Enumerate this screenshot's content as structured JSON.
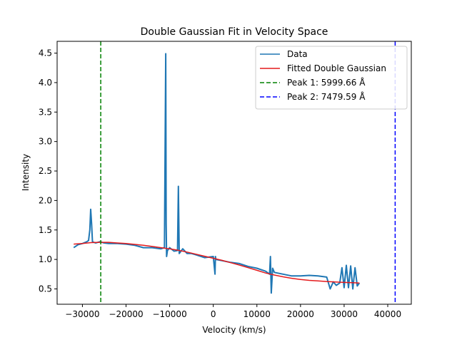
{
  "chart_data": {
    "type": "line",
    "title": "Double Gaussian Fit in Velocity Space",
    "xlabel": "Velocity (km/s)",
    "ylabel": "Intensity",
    "xlim": [
      -35800,
      45400
    ],
    "ylim": [
      0.24,
      4.7
    ],
    "xticks": [
      -30000,
      -20000,
      -10000,
      0,
      10000,
      20000,
      30000,
      40000
    ],
    "xtick_labels": [
      "−30000",
      "−20000",
      "−10000",
      "0",
      "10000",
      "20000",
      "30000",
      "40000"
    ],
    "yticks": [
      0.5,
      1.0,
      1.5,
      2.0,
      2.5,
      3.0,
      3.5,
      4.0,
      4.5
    ],
    "ytick_labels": [
      "0.5",
      "1.0",
      "1.5",
      "2.0",
      "2.5",
      "3.0",
      "3.5",
      "4.0",
      "4.5"
    ],
    "grid": false,
    "legend_position": "top-right",
    "series": [
      {
        "name": "Data",
        "color": "#1f77b4",
        "x": [
          -32000,
          -31000,
          -30000,
          -29000,
          -28600,
          -28300,
          -28100,
          -27900,
          -27700,
          -27000,
          -26000,
          -25000,
          -24000,
          -22000,
          -20000,
          -18000,
          -16000,
          -14000,
          -12000,
          -11200,
          -10900,
          -10800,
          -10700,
          -10500,
          -10000,
          -9000,
          -8200,
          -8000,
          -7800,
          -7000,
          -6000,
          -5000,
          -4000,
          -2000,
          0,
          400,
          500,
          600,
          2000,
          4000,
          6000,
          8000,
          10000,
          12000,
          12900,
          13100,
          13300,
          13600,
          14000,
          16000,
          18000,
          20000,
          22000,
          24000,
          26000,
          26800,
          27500,
          28200,
          29000,
          29500,
          30000,
          30500,
          31000,
          31500,
          32000,
          32500,
          33000,
          33500
        ],
        "y": [
          1.2,
          1.25,
          1.27,
          1.3,
          1.32,
          1.5,
          1.85,
          1.6,
          1.3,
          1.28,
          1.3,
          1.28,
          1.27,
          1.27,
          1.26,
          1.24,
          1.2,
          1.2,
          1.18,
          1.2,
          4.49,
          1.6,
          1.05,
          1.15,
          1.2,
          1.14,
          1.15,
          2.24,
          1.1,
          1.18,
          1.1,
          1.1,
          1.08,
          1.03,
          1.05,
          0.75,
          1.05,
          1.0,
          0.98,
          0.95,
          0.93,
          0.88,
          0.85,
          0.8,
          0.75,
          1.05,
          0.43,
          0.85,
          0.78,
          0.75,
          0.72,
          0.72,
          0.73,
          0.72,
          0.7,
          0.5,
          0.62,
          0.56,
          0.6,
          0.86,
          0.52,
          0.9,
          0.52,
          0.89,
          0.5,
          0.86,
          0.55,
          0.6
        ]
      },
      {
        "name": "Fitted Double Gaussian",
        "color": "#e41a1c",
        "x": [
          -32000,
          -30000,
          -28000,
          -26000,
          -24000,
          -22000,
          -20000,
          -18000,
          -16000,
          -14000,
          -12000,
          -10000,
          -8000,
          -6000,
          -4000,
          -2000,
          0,
          2000,
          4000,
          6000,
          8000,
          10000,
          12000,
          14000,
          16000,
          18000,
          20000,
          22000,
          24000,
          26000,
          28000,
          30000,
          32000,
          33500
        ],
        "y": [
          1.26,
          1.27,
          1.285,
          1.29,
          1.29,
          1.28,
          1.27,
          1.255,
          1.24,
          1.22,
          1.2,
          1.18,
          1.155,
          1.125,
          1.09,
          1.055,
          1.02,
          0.985,
          0.945,
          0.905,
          0.86,
          0.815,
          0.77,
          0.735,
          0.705,
          0.68,
          0.66,
          0.645,
          0.635,
          0.625,
          0.617,
          0.61,
          0.605,
          0.6
        ]
      },
      {
        "name": "Peak 1: 5999.66 Å",
        "color": "#008000",
        "style": "dashed",
        "vline": -25800
      },
      {
        "name": "Peak 2: 7479.59 Å",
        "color": "#0000ff",
        "style": "dashed",
        "vline": 41700
      }
    ]
  }
}
